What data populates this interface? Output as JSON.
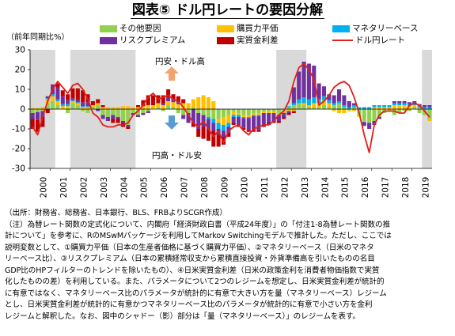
{
  "title": "図表⑤ ドル円レートの要因分解",
  "ylabel": "（前年同期比%）",
  "legend": [
    {
      "label": "その他要因",
      "color": "#92d050",
      "kind": "bar"
    },
    {
      "label": "購買力平価",
      "color": "#ffc000",
      "kind": "bar"
    },
    {
      "label": "マネタリーベース",
      "color": "#00b0f0",
      "kind": "bar"
    },
    {
      "label": "リスクプレミアム",
      "color": "#7030a0",
      "kind": "bar"
    },
    {
      "label": "実質金利差",
      "color": "#c00000",
      "kind": "bar"
    },
    {
      "label": "ドル円レート",
      "color": "#e0201a",
      "kind": "line"
    }
  ],
  "annotations": {
    "up": "円安・ドル高",
    "down": "円高・ドル安"
  },
  "notes": [
    "（出所：財務省、総務省、日本銀行、BLS、FRBよりSCGR作成）",
    "（注）為替レート関数の定式化について、内閣府「経済財政白書（平成24年度）」の「付注1-8為替レート関数の推",
    "計について」を参考に、RのMSwMパッケージを利用してMarkov Switchingモデルで推計した。ただし、ここでは",
    "説明変数として、①購買力平価（日本の生産者価格に基づく購買力平価）、②マネタリーベース（日米のマネタ",
    "リーベース比）、③リスクプレミアム（日本の累積経常収支から累積直接投資・外貨準備高を引いたものの名目",
    "GDP比のHPフィルターのトレンドを除いたもの）、④日米実質金利差（日米の政策金利を消費者物価指数で実質",
    "化したものの差）を利用している。また、パラメータについて2つのレジームを想定し、日米実質金利差が統計的",
    "に有意ではなく、マネタリーベース比のパラメータが統計的に有意で大きい方を量（マネタリーベース）レジーム",
    "とし、日米実質金利差が統計的に有意かつマネタリーベース比のパラメータが統計的に有意で小さい方を金利",
    "レジームと解釈した。なお、図中のシャドー（影）部分は「量（マネタリーベース）」のレジームを表す。"
  ],
  "chart_data": {
    "type": "bar",
    "stacked": true,
    "frequency": "quarterly",
    "start": "2000Q1",
    "end": "2019Q4",
    "ylabel": "（前年同期比%）",
    "ylim": [
      -30,
      30
    ],
    "yticks": [
      -30,
      -20,
      -10,
      0,
      10,
      20,
      30
    ],
    "xticks": [
      "2000",
      "2001",
      "2002",
      "2003",
      "2004",
      "2005",
      "2006",
      "2007",
      "2008",
      "2009",
      "2010",
      "2011",
      "2012",
      "2013",
      "2014",
      "2015",
      "2016",
      "2017",
      "2018",
      "2019"
    ],
    "shaded_regimes": [
      [
        "2000Q1",
        "2001Q1"
      ],
      [
        "2002Q1",
        "2005Q1"
      ],
      [
        "2012Q2",
        "2013Q3"
      ],
      [
        "2019Q3",
        "2019Q4"
      ]
    ],
    "categories": [
      "2000Q1",
      "2000Q2",
      "2000Q3",
      "2000Q4",
      "2001Q1",
      "2001Q2",
      "2001Q3",
      "2001Q4",
      "2002Q1",
      "2002Q2",
      "2002Q3",
      "2002Q4",
      "2003Q1",
      "2003Q2",
      "2003Q3",
      "2003Q4",
      "2004Q1",
      "2004Q2",
      "2004Q3",
      "2004Q4",
      "2005Q1",
      "2005Q2",
      "2005Q3",
      "2005Q4",
      "2006Q1",
      "2006Q2",
      "2006Q3",
      "2006Q4",
      "2007Q1",
      "2007Q2",
      "2007Q3",
      "2007Q4",
      "2008Q1",
      "2008Q2",
      "2008Q3",
      "2008Q4",
      "2009Q1",
      "2009Q2",
      "2009Q3",
      "2009Q4",
      "2010Q1",
      "2010Q2",
      "2010Q3",
      "2010Q4",
      "2011Q1",
      "2011Q2",
      "2011Q3",
      "2011Q4",
      "2012Q1",
      "2012Q2",
      "2012Q3",
      "2012Q4",
      "2013Q1",
      "2013Q2",
      "2013Q3",
      "2013Q4",
      "2014Q1",
      "2014Q2",
      "2014Q3",
      "2014Q4",
      "2015Q1",
      "2015Q2",
      "2015Q3",
      "2015Q4",
      "2016Q1",
      "2016Q2",
      "2016Q3",
      "2016Q4",
      "2017Q1",
      "2017Q2",
      "2017Q3",
      "2017Q4",
      "2018Q1",
      "2018Q2",
      "2018Q3",
      "2018Q4",
      "2019Q1",
      "2019Q2",
      "2019Q3",
      "2019Q4"
    ],
    "series": [
      {
        "name": "その他要因",
        "color": "#92d050",
        "values": [
          -2,
          -1.5,
          -1,
          3,
          4,
          2,
          0,
          -2,
          3,
          2,
          -1,
          -2,
          1,
          2,
          -3,
          -4,
          -3,
          -4,
          -6,
          -8,
          -2,
          -3,
          -2,
          -1,
          0,
          1,
          -1,
          2,
          1,
          -2,
          -3,
          -2,
          1,
          -2,
          -3,
          -4,
          -5,
          -5,
          -4,
          -3,
          -1,
          -2,
          -3,
          -3,
          -2,
          -2,
          -1,
          -1,
          -1,
          -2,
          -1,
          1,
          2,
          3,
          2,
          1,
          1,
          1,
          2,
          1,
          2,
          3,
          1,
          0,
          1,
          -3,
          -6,
          -7,
          -6,
          -4,
          -2,
          -1,
          -3,
          -2,
          -1,
          -1,
          1,
          -2,
          -3,
          -5
        ]
      },
      {
        "name": "購買力平価",
        "color": "#ffc000",
        "values": [
          0.5,
          0.5,
          1,
          2,
          2.5,
          2,
          1.5,
          1.5,
          1,
          1,
          1,
          1,
          1,
          1,
          1,
          1,
          1,
          1,
          1.5,
          1.5,
          1,
          1,
          1.5,
          2,
          2,
          2,
          2,
          2,
          2.5,
          2.5,
          3,
          3,
          4,
          6,
          7,
          6,
          4,
          -2,
          -4,
          -4,
          -2,
          -1,
          -1,
          -1,
          -1,
          -1,
          -1,
          -1,
          -1,
          -1,
          -1,
          -1,
          -1,
          0,
          1,
          1,
          2,
          2,
          2.5,
          2,
          -1,
          -2,
          -2,
          -1,
          -1,
          -1,
          -0.5,
          0,
          1,
          1,
          1,
          1,
          2,
          2,
          2,
          1.5,
          1,
          0.5,
          0,
          -1
        ]
      },
      {
        "name": "マネタリーベース",
        "color": "#00b0f0",
        "values": [
          0,
          0,
          0,
          0.5,
          1,
          1,
          1,
          1,
          0.5,
          0.5,
          0.5,
          0.5,
          0,
          0,
          0,
          0,
          0,
          0,
          0,
          0,
          0,
          0,
          0,
          0,
          0,
          0,
          0,
          0,
          0,
          0,
          0,
          0,
          0,
          0,
          0,
          -1,
          -2,
          -3,
          -3,
          -2,
          -1,
          -1,
          -0.5,
          -0.5,
          -0.5,
          -0.5,
          0,
          0,
          0,
          0,
          0,
          0.5,
          1,
          2,
          3,
          3,
          3,
          2,
          2,
          1.5,
          1,
          1,
          1,
          1,
          1,
          1,
          1,
          1,
          1,
          1,
          1,
          1,
          1,
          1,
          1,
          1,
          1,
          1,
          1,
          1
        ]
      },
      {
        "name": "リスクプレミアム",
        "color": "#7030a0",
        "values": [
          -3,
          -4,
          -3,
          1,
          5,
          6,
          4,
          2,
          1,
          1,
          2,
          2,
          0,
          -1,
          -2,
          -2,
          -2,
          -1,
          -1,
          -1,
          -1,
          -1,
          -1,
          -1,
          0,
          0,
          1,
          2,
          1,
          1,
          -2,
          -5,
          -7,
          -8,
          -6,
          -5,
          -4,
          -3,
          -3,
          -3,
          -3,
          -4,
          -5,
          -6,
          -7,
          -7,
          -6,
          -5,
          -4,
          -3,
          -2,
          -1,
          8,
          14,
          18,
          18,
          16,
          8,
          5,
          3,
          4,
          6,
          5,
          3,
          1,
          0,
          -2,
          -3,
          -2,
          -1,
          0,
          0,
          1,
          1,
          1,
          1,
          1,
          1,
          1,
          1
        ]
      },
      {
        "name": "実質金利差",
        "color": "#c00000",
        "values": [
          -5,
          -6,
          -5,
          -2,
          0,
          2,
          3,
          3,
          5,
          6,
          6,
          4,
          2,
          2,
          1,
          0,
          -2,
          -2,
          -2,
          -1,
          0,
          1,
          3,
          5,
          5,
          4,
          4,
          4,
          3,
          3,
          2,
          0,
          -2,
          -4,
          -6,
          -6,
          -8,
          -6,
          -4,
          -2,
          -1,
          -1,
          -1,
          -1,
          -1,
          -1,
          -1,
          -1,
          -1,
          -1,
          -1,
          -1,
          -1,
          0,
          0,
          0,
          0,
          0,
          0,
          0,
          0,
          0,
          0,
          0,
          0,
          0,
          0,
          0,
          0,
          0,
          0,
          0,
          0,
          0,
          0,
          0,
          0,
          0,
          0,
          0
        ]
      }
    ],
    "line": {
      "name": "ドル円レート",
      "color": "#e0201a",
      "values": [
        -9,
        -13,
        -4,
        4,
        10,
        14,
        11,
        8,
        12,
        13,
        10,
        5,
        -2,
        -4,
        -8,
        -9,
        -9,
        -8,
        -8,
        -7,
        -3,
        -1,
        2,
        6,
        8,
        5,
        6,
        7,
        5,
        4,
        1,
        -3,
        -7,
        -9,
        -6,
        -10,
        -14,
        -11,
        -17,
        -11,
        -9,
        -8,
        -11,
        -13,
        -10,
        -9,
        -8,
        -8,
        -6,
        -3,
        -1,
        4,
        14,
        21,
        23,
        20,
        15,
        2,
        4,
        7,
        11,
        13,
        14,
        12,
        6,
        -2,
        -13,
        -22,
        -8,
        -3,
        -1,
        -1,
        -1,
        -2,
        -2,
        2,
        3,
        2,
        -1,
        -4
      ]
    }
  }
}
